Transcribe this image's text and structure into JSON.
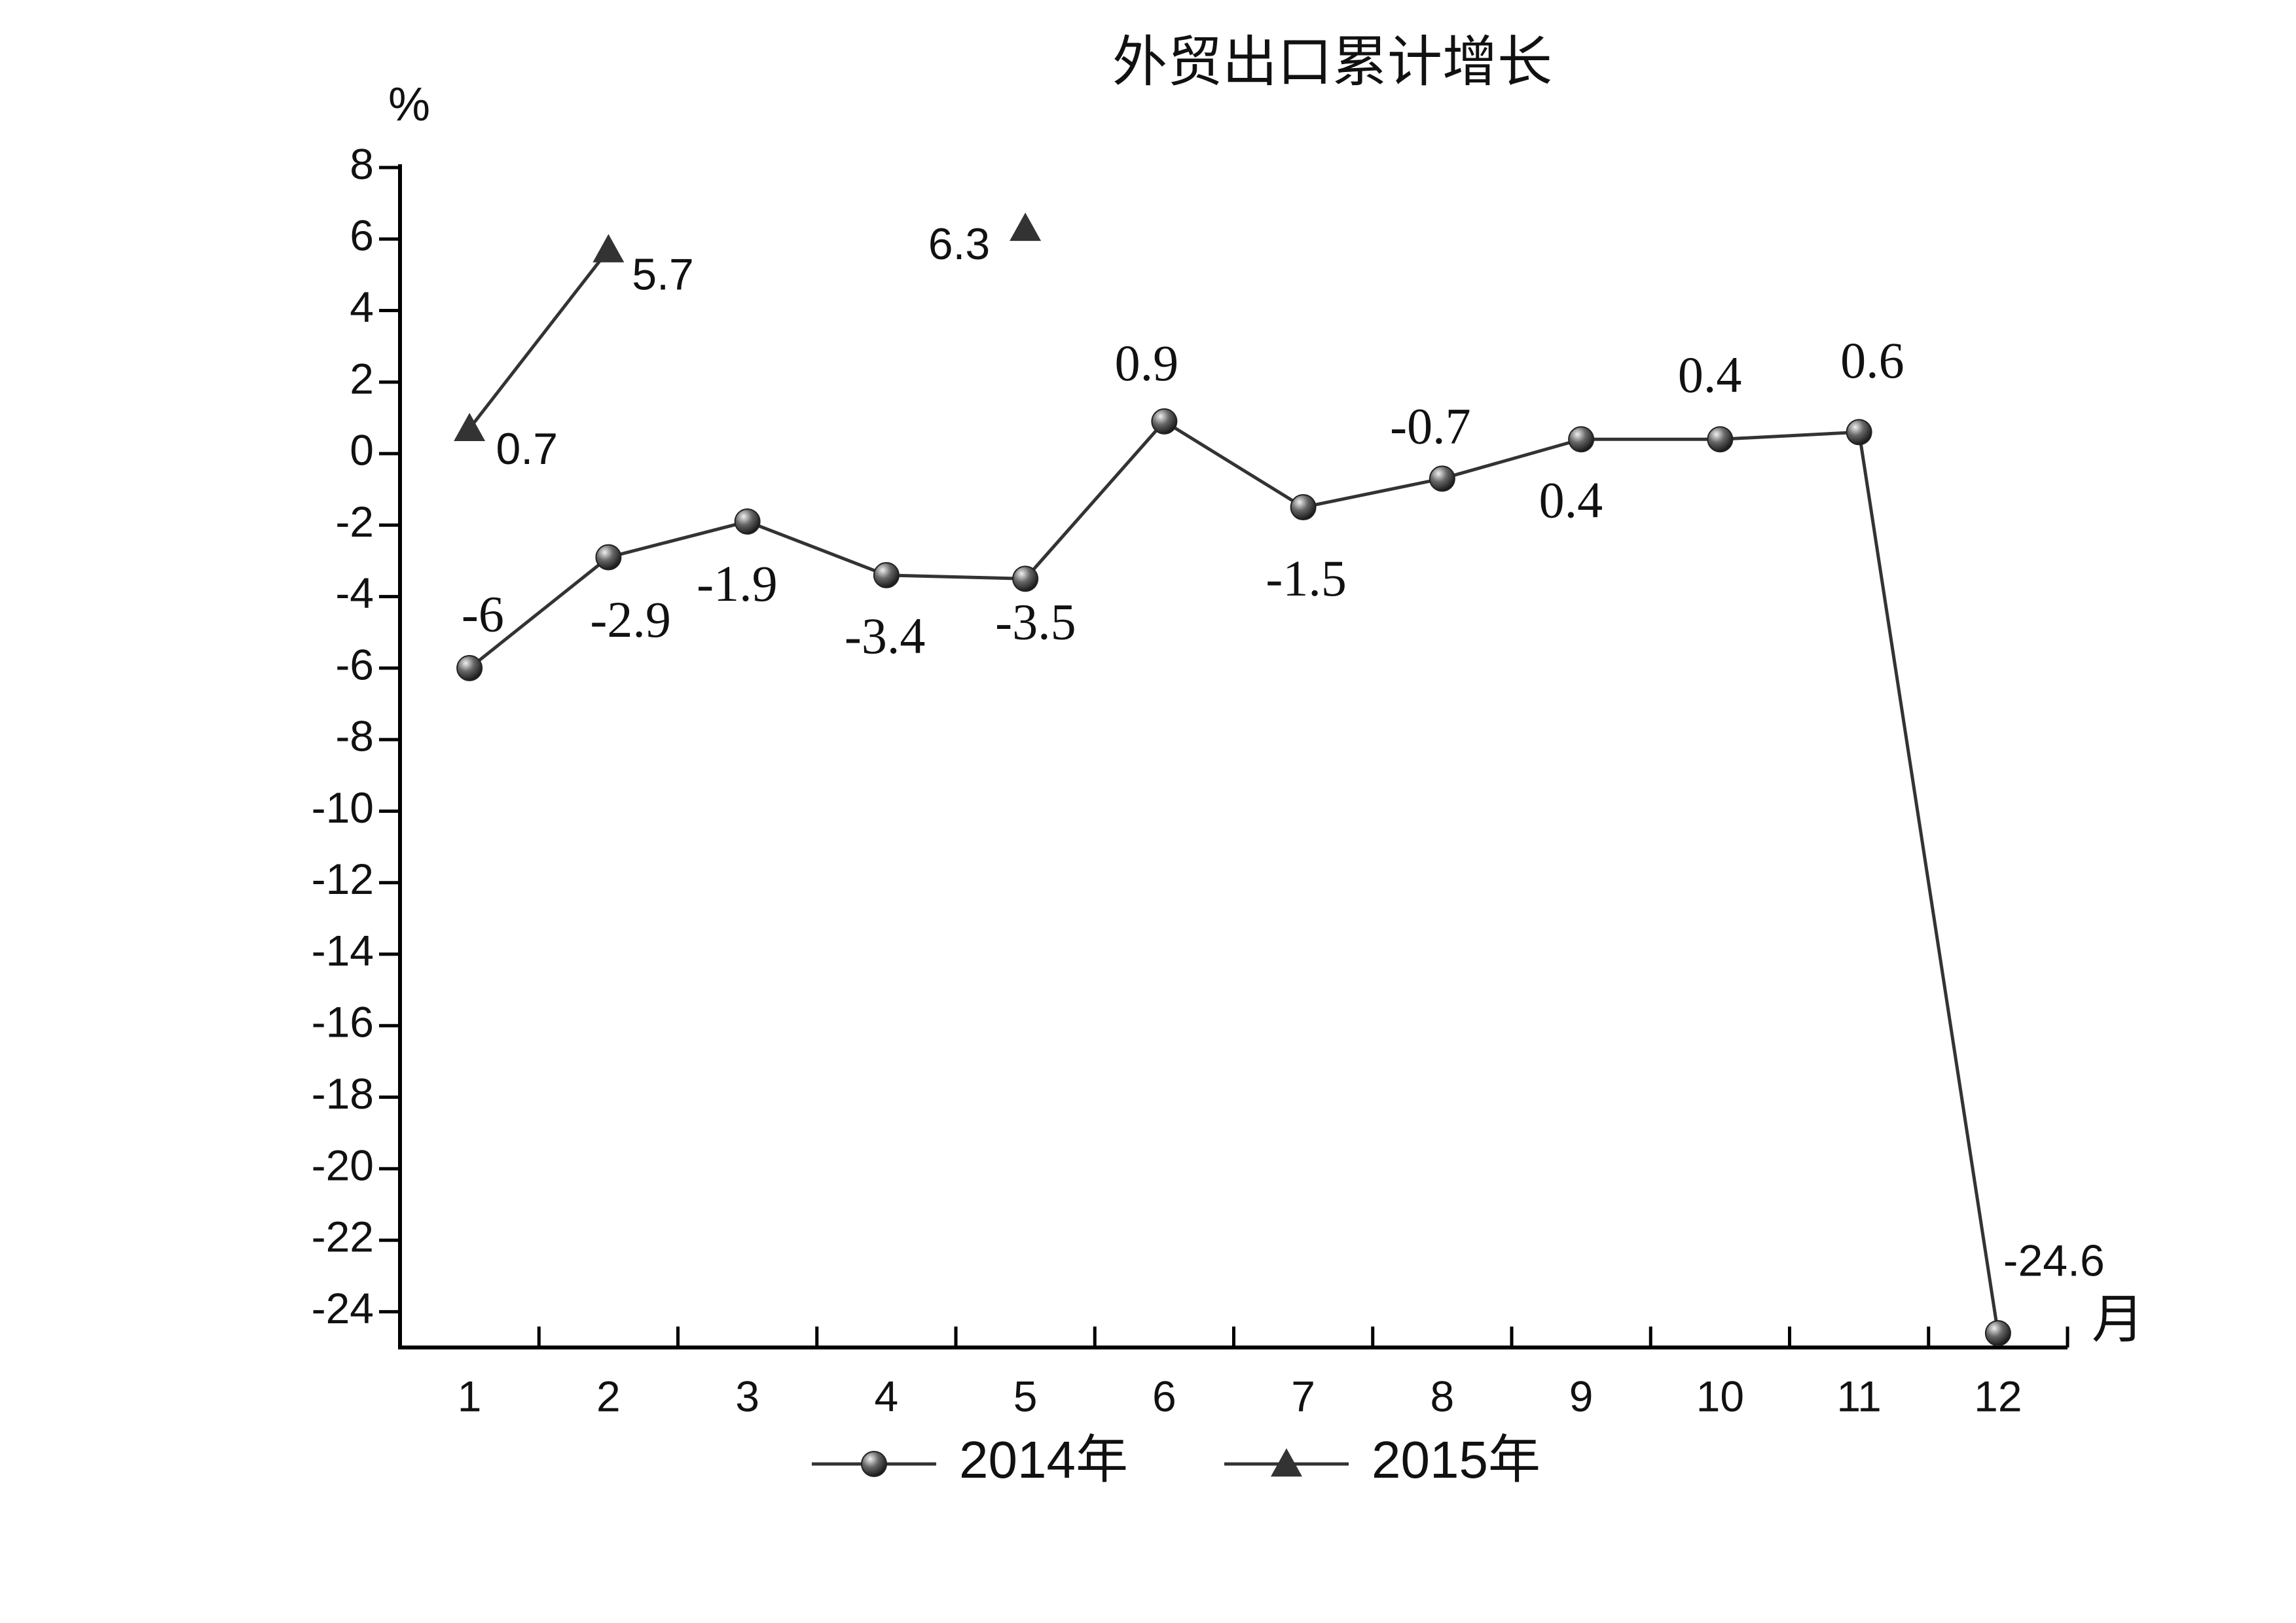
{
  "chart_data": {
    "type": "line",
    "title": "外贸出口累计增长",
    "y_label": "%",
    "x_label": "月",
    "categories": [
      "1",
      "2",
      "3",
      "4",
      "5",
      "6",
      "7",
      "8",
      "9",
      "10",
      "11",
      "12"
    ],
    "series": [
      {
        "name": "2014年",
        "color": "#333333",
        "marker": "circle",
        "values": [
          -6,
          -2.9,
          -1.9,
          -3.4,
          -3.5,
          0.9,
          -1.5,
          -0.7,
          0.4,
          0.4,
          0.6,
          -24.6
        ]
      },
      {
        "name": "2015年",
        "color": "#333333",
        "marker": "triangle",
        "values": [
          0.7,
          5.7,
          null,
          null,
          6.3,
          null,
          null,
          null,
          null,
          null,
          null,
          null
        ]
      }
    ],
    "ylim": [
      -25,
      8
    ],
    "yticks": [
      -24,
      -22,
      -20,
      -18,
      -16,
      -14,
      -12,
      -10,
      -8,
      -6,
      -4,
      -2,
      0,
      2,
      4,
      6,
      8
    ],
    "grid": false
  }
}
